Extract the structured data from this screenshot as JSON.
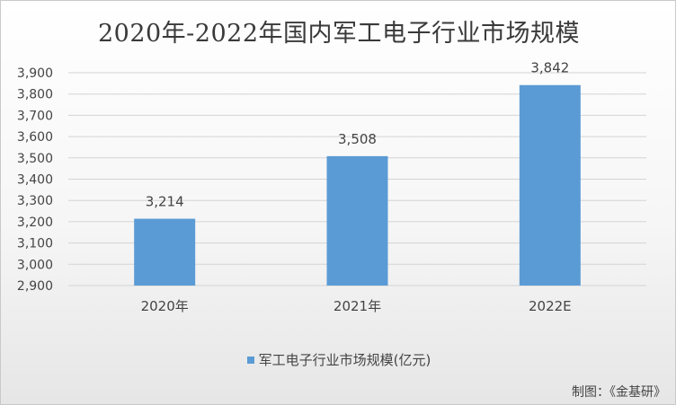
{
  "chart_data": {
    "type": "bar",
    "title": "2020年-2022年国内军工电子行业市场规模",
    "categories": [
      "2020年",
      "2021年",
      "2022E"
    ],
    "series": [
      {
        "name": "军工电子行业市场规模(亿元)",
        "values": [
          3214,
          3508,
          3842
        ]
      }
    ],
    "data_labels": [
      "3,214",
      "3,508",
      "3,842"
    ],
    "yticks": [
      "2,900",
      "3,000",
      "3,100",
      "3,200",
      "3,300",
      "3,400",
      "3,500",
      "3,600",
      "3,700",
      "3,800",
      "3,900"
    ],
    "ylim": [
      2900,
      3900
    ],
    "grid": true,
    "legend_position": "bottom",
    "bar_color": "#5b9bd5"
  },
  "source": "制图：《金基研》"
}
